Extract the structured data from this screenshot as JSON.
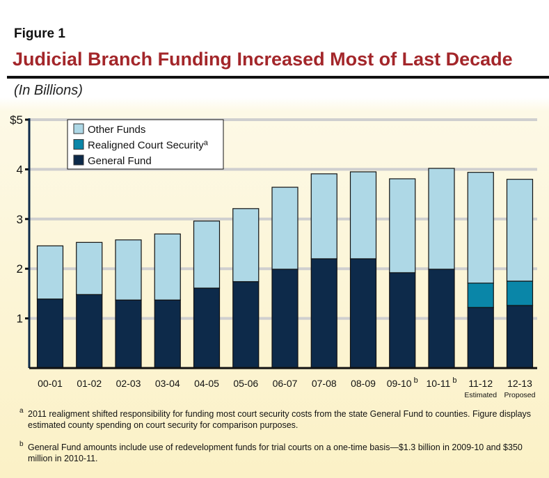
{
  "figure_label": "Figure 1",
  "title": "Judicial Branch Funding Increased Most of Last Decade",
  "subtitle": "(In Billions)",
  "colors": {
    "title": "#a3262a",
    "other_funds": "#aed8e6",
    "realigned_court_security": "#0a86a8",
    "general_fund": "#0d2a4a"
  },
  "chart_data": {
    "type": "bar",
    "stacked": true,
    "categories": [
      "00-01",
      "01-02",
      "02-03",
      "03-04",
      "04-05",
      "05-06",
      "06-07",
      "07-08",
      "08-09",
      "09-10",
      "10-11",
      "11-12",
      "12-13"
    ],
    "category_superscripts": [
      "",
      "",
      "",
      "",
      "",
      "",
      "",
      "",
      "",
      "b",
      "b",
      "",
      ""
    ],
    "category_sublabels": [
      "",
      "",
      "",
      "",
      "",
      "",
      "",
      "",
      "",
      "",
      "",
      "Estimated",
      "Proposed"
    ],
    "series": [
      {
        "name": "General Fund",
        "values": [
          1.39,
          1.48,
          1.37,
          1.37,
          1.61,
          1.74,
          1.99,
          2.2,
          2.2,
          1.92,
          1.99,
          1.22,
          1.26
        ]
      },
      {
        "name": "Realigned Court Security",
        "superscript": "a",
        "values": [
          0,
          0,
          0,
          0,
          0,
          0,
          0,
          0,
          0,
          0,
          0,
          0.49,
          0.49
        ]
      },
      {
        "name": "Other Funds",
        "values": [
          1.07,
          1.05,
          1.21,
          1.33,
          1.35,
          1.47,
          1.65,
          1.71,
          1.75,
          1.89,
          2.03,
          2.23,
          2.05
        ]
      }
    ],
    "ylim": [
      0,
      5
    ],
    "yticks": [
      {
        "value": 1,
        "label": "1"
      },
      {
        "value": 2,
        "label": "2"
      },
      {
        "value": 3,
        "label": "3"
      },
      {
        "value": 4,
        "label": "4"
      },
      {
        "value": 5,
        "label": "$5"
      }
    ],
    "grid": true,
    "legend_position": "top-left",
    "legend_order": [
      "Other Funds",
      "Realigned Court Security",
      "General Fund"
    ]
  },
  "footnotes": [
    {
      "mark": "a",
      "text": "2011 realigment shifted responsibility for funding most court security costs from the state General Fund to counties. Figure displays estimated county spending on court security for comparison purposes."
    },
    {
      "mark": "b",
      "text": "General Fund amounts include use of redevelopment funds for trial courts on a one-time basis—$1.3 billion in 2009-10 and $350 million in 2010-11."
    }
  ]
}
